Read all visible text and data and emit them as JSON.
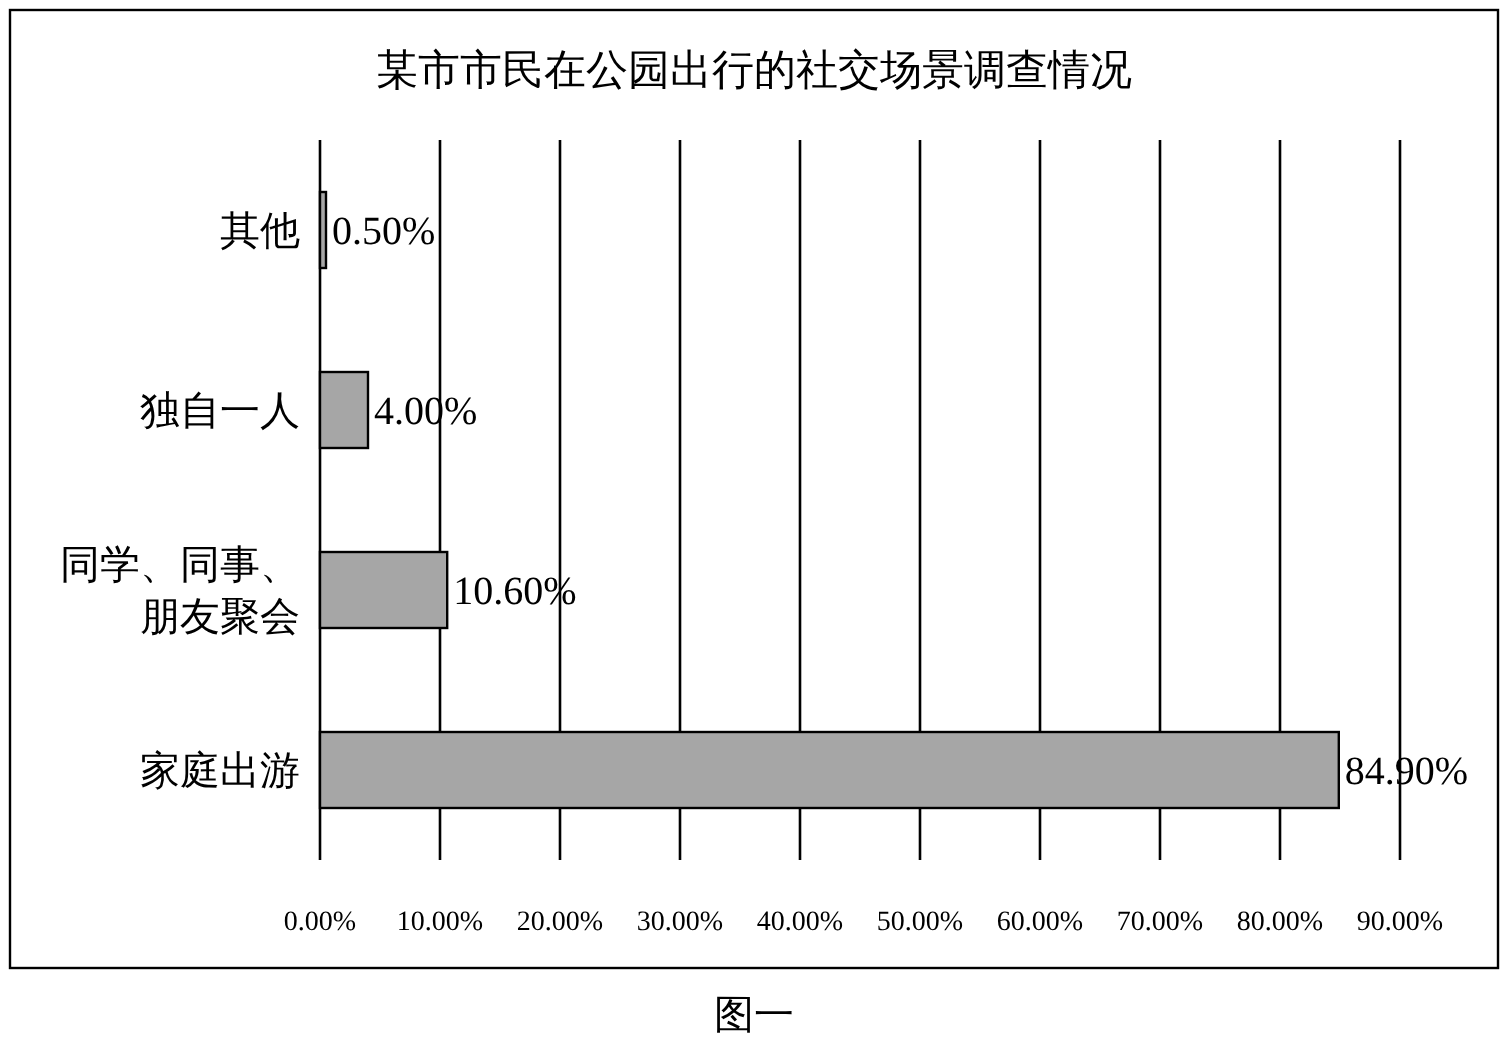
{
  "chart_data": {
    "type": "bar",
    "orientation": "horizontal",
    "title": "某市市民在公园出行的社交场景调查情况",
    "categories": [
      "其他",
      "独自一人",
      "同学、同事、朋友聚会",
      "家庭出游"
    ],
    "values": [
      0.5,
      4.0,
      10.6,
      84.9
    ],
    "value_labels": [
      "0.50%",
      "4.00%",
      "10.60%",
      "84.90%"
    ],
    "color": "#a6a6a6",
    "xlim": [
      0,
      90
    ],
    "xticks": [
      {
        "value": 0,
        "label": "0.00%"
      },
      {
        "value": 10,
        "label": "10.00%"
      },
      {
        "value": 20,
        "label": "20.00%"
      },
      {
        "value": 30,
        "label": "30.00%"
      },
      {
        "value": 40,
        "label": "40.00%"
      },
      {
        "value": 50,
        "label": "50.00%"
      },
      {
        "value": 60,
        "label": "60.00%"
      },
      {
        "value": 70,
        "label": "70.00%"
      },
      {
        "value": 80,
        "label": "80.00%"
      },
      {
        "value": 90,
        "label": "90.00%"
      }
    ],
    "grid": "x",
    "annotations": [
      "图一"
    ]
  }
}
